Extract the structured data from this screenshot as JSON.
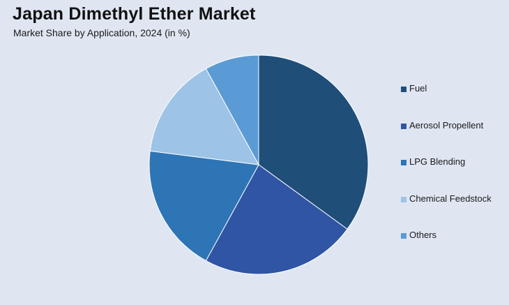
{
  "title": "Japan Dimethyl Ether Market",
  "subtitle": "Market Share by Application, 2024 (in %)",
  "chart_data": {
    "type": "pie",
    "categories": [
      "Fuel",
      "Aerosol Propellent",
      "LPG Blending",
      "Chemical Feedstock",
      "Others"
    ],
    "values": [
      35,
      23,
      19,
      15,
      8
    ],
    "colors": [
      "#1f4e79",
      "#2f55a4",
      "#2e75b6",
      "#9dc3e6",
      "#5b9bd5"
    ],
    "legend": "right",
    "start": "top, clockwise"
  }
}
